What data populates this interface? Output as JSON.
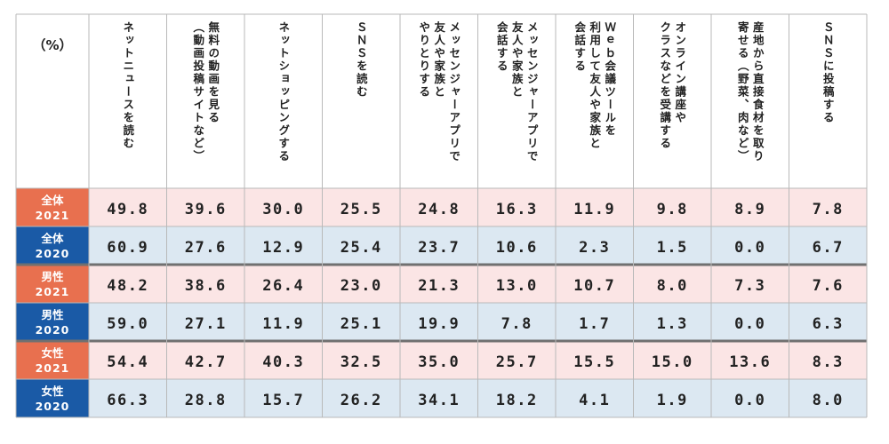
{
  "chart_data": {
    "type": "table",
    "unit_label": "（%）",
    "columns": [
      "ネットニュースを読む",
      "無料の動画を見る\n（動画投稿サイトなど）",
      "ネットショッピングする",
      "ＳＮＳを読む",
      "メッセンジャーアプリで\n友人や家族と\nやりとりする",
      "メッセンジャーアプリで\n友人や家族と\n会話する",
      "Ｗｅｂ会議ツールを\n利用して友人や家族と\n会話する",
      "オンライン講座や\nクラスなどを受講する",
      "産地から直接食材を取り\n寄せる（野菜、肉など）",
      "ＳＮＳに投稿する"
    ],
    "rows": [
      {
        "label1": "全体",
        "label2": "2021",
        "group": "2021",
        "values": [
          "49.8",
          "39.6",
          "30.0",
          "25.5",
          "24.8",
          "16.3",
          "11.9",
          "9.8",
          "8.9",
          "7.8"
        ]
      },
      {
        "label1": "全体",
        "label2": "2020",
        "group": "2020",
        "values": [
          "60.9",
          "27.6",
          "12.9",
          "25.4",
          "23.7",
          "10.6",
          "2.3",
          "1.5",
          "0.0",
          "6.7"
        ]
      },
      {
        "label1": "男性",
        "label2": "2021",
        "group": "2021",
        "values": [
          "48.2",
          "38.6",
          "26.4",
          "23.0",
          "21.3",
          "13.0",
          "10.7",
          "8.0",
          "7.3",
          "7.6"
        ]
      },
      {
        "label1": "男性",
        "label2": "2020",
        "group": "2020",
        "values": [
          "59.0",
          "27.1",
          "11.9",
          "25.1",
          "19.9",
          "7.8",
          "1.7",
          "1.3",
          "0.0",
          "6.3"
        ]
      },
      {
        "label1": "女性",
        "label2": "2021",
        "group": "2021",
        "values": [
          "54.4",
          "42.7",
          "40.3",
          "32.5",
          "35.0",
          "25.7",
          "15.5",
          "15.0",
          "13.6",
          "8.3"
        ]
      },
      {
        "label1": "女性",
        "label2": "2020",
        "group": "2020",
        "values": [
          "66.3",
          "28.8",
          "15.7",
          "26.2",
          "34.1",
          "18.2",
          "4.1",
          "1.9",
          "0.0",
          "8.0"
        ]
      }
    ],
    "colors": {
      "label_2021": "#e8704f",
      "label_2020": "#1a5aa6",
      "cell_2021": "#fbe5e5",
      "cell_2020": "#dce8f2",
      "grid": "#b9b9b9",
      "group_divider": "#707070"
    }
  }
}
